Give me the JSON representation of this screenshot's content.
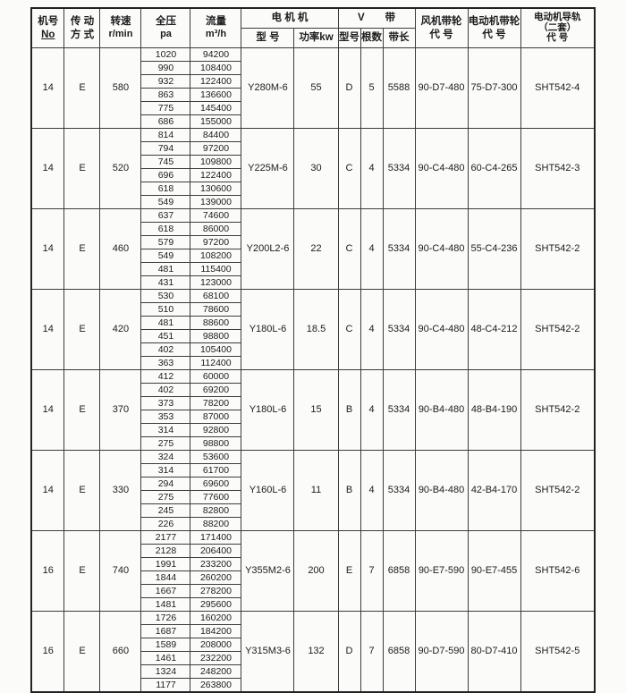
{
  "header": {
    "no": [
      "机号",
      "No"
    ],
    "drive": [
      "传 动",
      "方 式"
    ],
    "speed": [
      "转速",
      "r/min"
    ],
    "pressure": [
      "全压",
      "pa"
    ],
    "flow": [
      "流量",
      "m³/h"
    ],
    "motor_group": "电  机  机",
    "motor_model": "型 号",
    "motor_power": "功率kw",
    "v1": "V",
    "v2": "带",
    "v_type": "型号",
    "v_count": "根数",
    "v_length": "带长",
    "fan_pulley": [
      "风机带轮",
      "代 号"
    ],
    "motor_pulley": [
      "电动机带轮",
      "代 号"
    ],
    "rail": [
      "电动机导轨",
      "（二套）",
      "代 号"
    ]
  },
  "colors": {
    "grid": "#3c3c3c",
    "outer_border": "#222222",
    "background": "#fbfbfa",
    "text": "#1c1c1c"
  },
  "table": {
    "groups": [
      {
        "no": "14",
        "drive": "E",
        "speed": "580",
        "rows": [
          [
            "1020",
            "94200"
          ],
          [
            "990",
            "108400"
          ],
          [
            "932",
            "122400"
          ],
          [
            "863",
            "136600"
          ],
          [
            "775",
            "145400"
          ],
          [
            "686",
            "155000"
          ]
        ],
        "motor_model": "Y280M-6",
        "power": "55",
        "belt_type": "D",
        "belt_count": "5",
        "belt_length": "5588",
        "fan_pulley": "90-D7-480",
        "motor_pulley": "75-D7-300",
        "rail": "SHT542-4"
      },
      {
        "no": "14",
        "drive": "E",
        "speed": "520",
        "rows": [
          [
            "814",
            "84400"
          ],
          [
            "794",
            "97200"
          ],
          [
            "745",
            "109800"
          ],
          [
            "696",
            "122400"
          ],
          [
            "618",
            "130600"
          ],
          [
            "549",
            "139000"
          ]
        ],
        "motor_model": "Y225M-6",
        "power": "30",
        "belt_type": "C",
        "belt_count": "4",
        "belt_length": "5334",
        "fan_pulley": "90-C4-480",
        "motor_pulley": "60-C4-265",
        "rail": "SHT542-3"
      },
      {
        "no": "14",
        "drive": "E",
        "speed": "460",
        "rows": [
          [
            "637",
            "74600"
          ],
          [
            "618",
            "86000"
          ],
          [
            "579",
            "97200"
          ],
          [
            "549",
            "108200"
          ],
          [
            "481",
            "115400"
          ],
          [
            "431",
            "123000"
          ]
        ],
        "motor_model": "Y200L2-6",
        "power": "22",
        "belt_type": "C",
        "belt_count": "4",
        "belt_length": "5334",
        "fan_pulley": "90-C4-480",
        "motor_pulley": "55-C4-236",
        "rail": "SHT542-2"
      },
      {
        "no": "14",
        "drive": "E",
        "speed": "420",
        "rows": [
          [
            "530",
            "68100"
          ],
          [
            "510",
            "78600"
          ],
          [
            "481",
            "88600"
          ],
          [
            "451",
            "98800"
          ],
          [
            "402",
            "105400"
          ],
          [
            "363",
            "112400"
          ]
        ],
        "motor_model": "Y180L-6",
        "power": "18.5",
        "belt_type": "C",
        "belt_count": "4",
        "belt_length": "5334",
        "fan_pulley": "90-C4-480",
        "motor_pulley": "48-C4-212",
        "rail": "SHT542-2"
      },
      {
        "no": "14",
        "drive": "E",
        "speed": "370",
        "rows": [
          [
            "412",
            "60000"
          ],
          [
            "402",
            "69200"
          ],
          [
            "373",
            "78200"
          ],
          [
            "353",
            "87000"
          ],
          [
            "314",
            "92800"
          ],
          [
            "275",
            "98800"
          ]
        ],
        "motor_model": "Y180L-6",
        "power": "15",
        "belt_type": "B",
        "belt_count": "4",
        "belt_length": "5334",
        "fan_pulley": "90-B4-480",
        "motor_pulley": "48-B4-190",
        "rail": "SHT542-2"
      },
      {
        "no": "14",
        "drive": "E",
        "speed": "330",
        "rows": [
          [
            "324",
            "53600"
          ],
          [
            "314",
            "61700"
          ],
          [
            "294",
            "69600"
          ],
          [
            "275",
            "77600"
          ],
          [
            "245",
            "82800"
          ],
          [
            "226",
            "88200"
          ]
        ],
        "motor_model": "Y160L-6",
        "power": "11",
        "belt_type": "B",
        "belt_count": "4",
        "belt_length": "5334",
        "fan_pulley": "90-B4-480",
        "motor_pulley": "42-B4-170",
        "rail": "SHT542-2"
      },
      {
        "no": "16",
        "drive": "E",
        "speed": "740",
        "rows": [
          [
            "2177",
            "171400"
          ],
          [
            "2128",
            "206400"
          ],
          [
            "1991",
            "233200"
          ],
          [
            "1844",
            "260200"
          ],
          [
            "1667",
            "278200"
          ],
          [
            "1481",
            "295600"
          ]
        ],
        "motor_model": "Y355M2-6",
        "power": "200",
        "belt_type": "E",
        "belt_count": "7",
        "belt_length": "6858",
        "fan_pulley": "90-E7-590",
        "motor_pulley": "90-E7-455",
        "rail": "SHT542-6"
      },
      {
        "no": "16",
        "drive": "E",
        "speed": "660",
        "rows": [
          [
            "1726",
            "160200"
          ],
          [
            "1687",
            "184200"
          ],
          [
            "1589",
            "208000"
          ],
          [
            "1461",
            "232200"
          ],
          [
            "1324",
            "248200"
          ],
          [
            "1177",
            "263800"
          ]
        ],
        "motor_model": "Y315M3-6",
        "power": "132",
        "belt_type": "D",
        "belt_count": "7",
        "belt_length": "6858",
        "fan_pulley": "90-D7-590",
        "motor_pulley": "80-D7-410",
        "rail": "SHT542-5"
      }
    ]
  }
}
